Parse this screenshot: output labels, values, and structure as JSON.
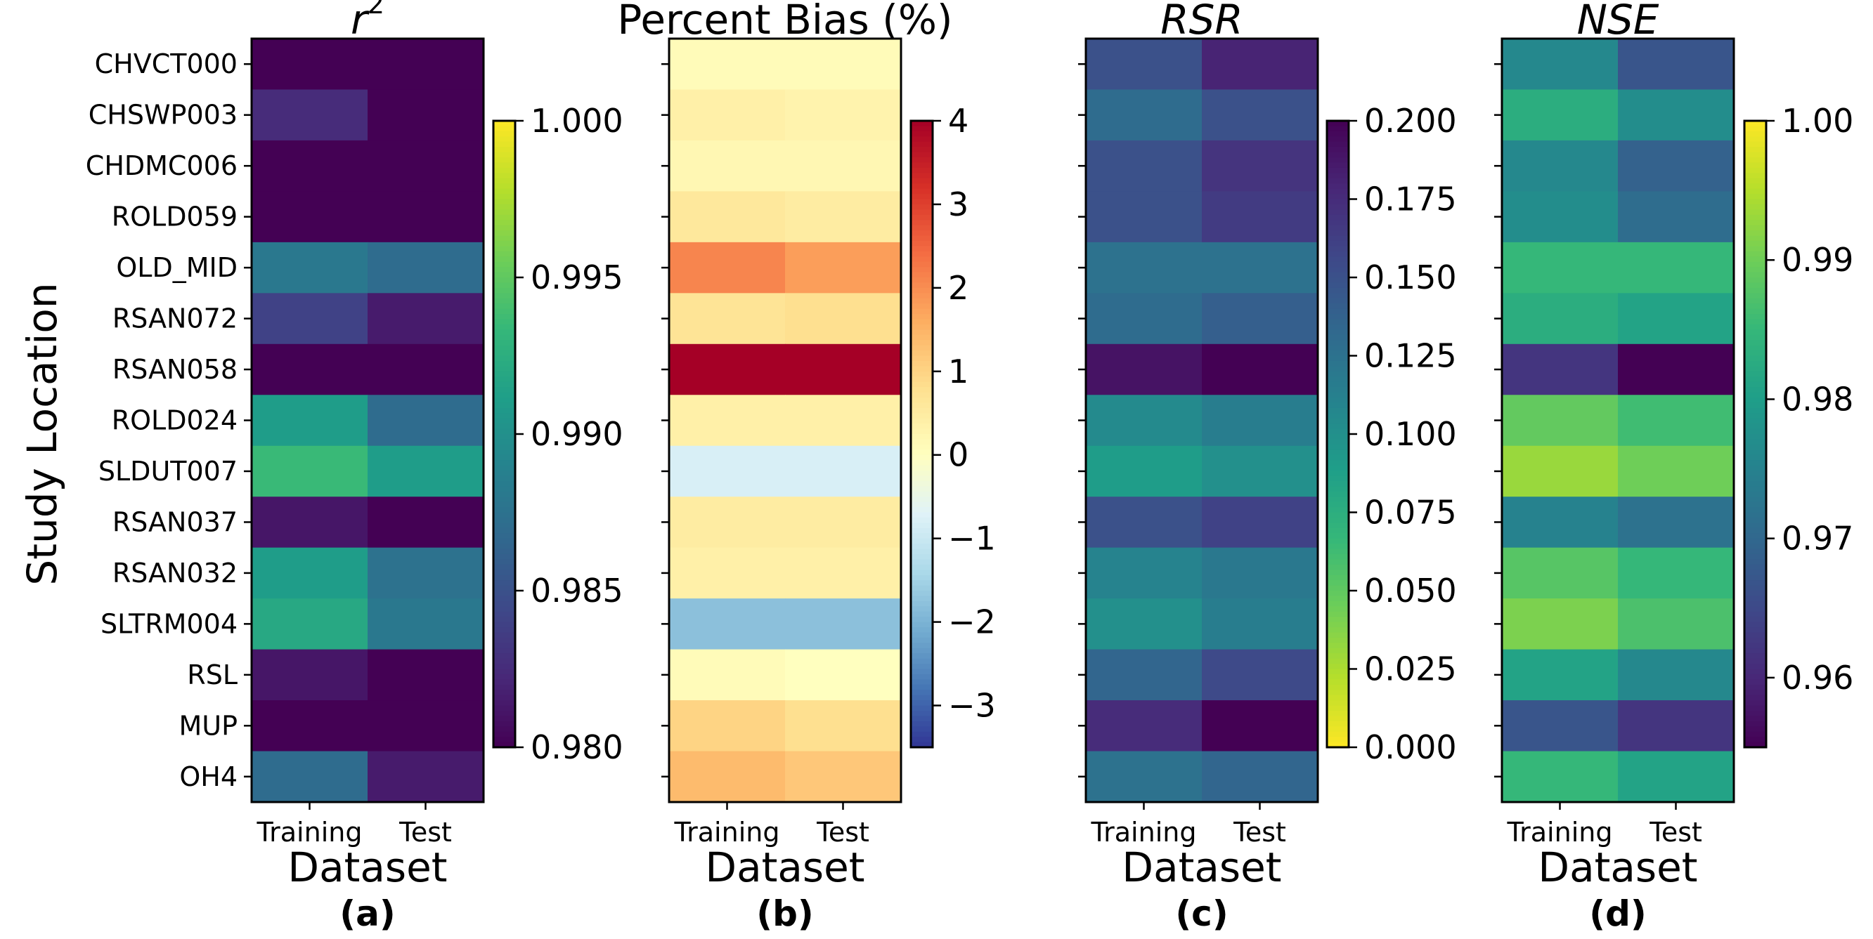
{
  "chart_data": {
    "type": "heatmap",
    "ylabel": "Study Location",
    "rows": [
      "CHVCT000",
      "CHSWP003",
      "CHDMC006",
      "ROLD059",
      "OLD_MID",
      "RSAN072",
      "RSAN058",
      "ROLD024",
      "SLDUT007",
      "RSAN037",
      "RSAN032",
      "SLTRM004",
      "RSL",
      "MUP",
      "OH4"
    ],
    "columns": [
      "Training",
      "Test"
    ],
    "panels": [
      {
        "id": "a",
        "label": "(a)",
        "title_main": "r",
        "title_sup": "2",
        "xlabel": "Dataset",
        "colormap": "viridis",
        "vmin": 0.98,
        "vmax": 1.0,
        "cbar_ticks": [
          0.98,
          0.985,
          0.99,
          0.995,
          1.0
        ],
        "cbar_tick_labels": [
          "0.980",
          "0.985",
          "0.990",
          "0.995",
          "1.000"
        ],
        "values": [
          [
            0.9797,
            0.9797
          ],
          [
            0.9825,
            0.9797
          ],
          [
            0.9797,
            0.9797
          ],
          [
            0.9797,
            0.9797
          ],
          [
            0.988,
            0.987
          ],
          [
            0.984,
            0.9815
          ],
          [
            0.98,
            0.98
          ],
          [
            0.991,
            0.987
          ],
          [
            0.9935,
            0.991
          ],
          [
            0.9812,
            0.9797
          ],
          [
            0.991,
            0.9875
          ],
          [
            0.992,
            0.988
          ],
          [
            0.9812,
            0.9797
          ],
          [
            0.9797,
            0.9797
          ],
          [
            0.987,
            0.9815
          ]
        ]
      },
      {
        "id": "b",
        "label": "(b)",
        "title_main": "Percent Bias (%)",
        "title_sup": "",
        "xlabel": "Dataset",
        "colormap": "rdylbu_r",
        "vmin": -3.5,
        "vmax": 4.0,
        "cbar_ticks": [
          -3,
          -2,
          -1,
          0,
          1,
          2,
          3,
          4
        ],
        "cbar_tick_labels": [
          "−3",
          "−2",
          "−1",
          "0",
          "1",
          "2",
          "3",
          "4"
        ],
        "values": [
          [
            0.1,
            0.1
          ],
          [
            0.4,
            0.3
          ],
          [
            0.2,
            0.2
          ],
          [
            0.6,
            0.5
          ],
          [
            2.1,
            1.8
          ],
          [
            0.7,
            0.8
          ],
          [
            4.0,
            4.0
          ],
          [
            0.4,
            0.4
          ],
          [
            -0.8,
            -0.8
          ],
          [
            0.5,
            0.5
          ],
          [
            0.4,
            0.4
          ],
          [
            -1.8,
            -1.8
          ],
          [
            0.1,
            0.0
          ],
          [
            1.0,
            0.8
          ],
          [
            1.4,
            1.2
          ]
        ]
      },
      {
        "id": "c",
        "label": "(c)",
        "title_main": "RSR",
        "title_sup": "",
        "xlabel": "Dataset",
        "colormap": "viridis_r",
        "vmin": 0.0,
        "vmax": 0.2,
        "cbar_ticks": [
          0.0,
          0.025,
          0.05,
          0.075,
          0.1,
          0.125,
          0.15,
          0.175,
          0.2
        ],
        "cbar_tick_labels": [
          "0.000",
          "0.025",
          "0.050",
          "0.075",
          "0.100",
          "0.125",
          "0.150",
          "0.175",
          "0.200"
        ],
        "values": [
          [
            0.15,
            0.18
          ],
          [
            0.13,
            0.15
          ],
          [
            0.15,
            0.17
          ],
          [
            0.15,
            0.165
          ],
          [
            0.125,
            0.125
          ],
          [
            0.13,
            0.14
          ],
          [
            0.19,
            0.205
          ],
          [
            0.105,
            0.115
          ],
          [
            0.09,
            0.1
          ],
          [
            0.15,
            0.16
          ],
          [
            0.11,
            0.12
          ],
          [
            0.1,
            0.115
          ],
          [
            0.135,
            0.155
          ],
          [
            0.175,
            0.205
          ],
          [
            0.125,
            0.135
          ]
        ]
      },
      {
        "id": "d",
        "label": "(d)",
        "title_main": "NSE",
        "title_sup": "",
        "xlabel": "Dataset",
        "colormap": "viridis",
        "vmin": 0.955,
        "vmax": 1.0,
        "cbar_ticks": [
          0.96,
          0.97,
          0.98,
          0.99,
          1.0
        ],
        "cbar_tick_labels": [
          "0.96",
          "0.97",
          "0.98",
          "0.99",
          "1.00"
        ],
        "values": [
          [
            0.976,
            0.967
          ],
          [
            0.983,
            0.977
          ],
          [
            0.976,
            0.969
          ],
          [
            0.977,
            0.971
          ],
          [
            0.985,
            0.985
          ],
          [
            0.983,
            0.981
          ],
          [
            0.962,
            0.955
          ],
          [
            0.989,
            0.986
          ],
          [
            0.993,
            0.99
          ],
          [
            0.975,
            0.972
          ],
          [
            0.988,
            0.985
          ],
          [
            0.991,
            0.987
          ],
          [
            0.981,
            0.976
          ],
          [
            0.967,
            0.962
          ],
          [
            0.985,
            0.981
          ]
        ]
      }
    ]
  }
}
